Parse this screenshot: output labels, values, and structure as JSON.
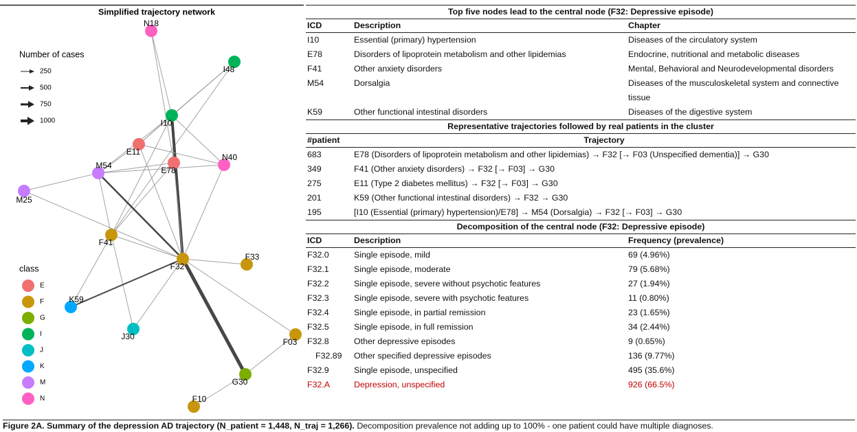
{
  "network": {
    "title": "Simplified trajectory network",
    "legend_title": "Number of cases",
    "widths": [
      250,
      500,
      750,
      1000
    ],
    "class_title": "class",
    "classes": [
      {
        "label": "E",
        "color": "#f07070"
      },
      {
        "label": "F",
        "color": "#c8960c"
      },
      {
        "label": "G",
        "color": "#7cae00"
      },
      {
        "label": "I",
        "color": "#00b35a"
      },
      {
        "label": "J",
        "color": "#00bfc4"
      },
      {
        "label": "K",
        "color": "#00a9ff"
      },
      {
        "label": "M",
        "color": "#c77cff"
      },
      {
        "label": "N",
        "color": "#ff61c3"
      }
    ],
    "nodes": [
      {
        "label": "N18",
        "color": "#ff61c3"
      },
      {
        "label": "I48",
        "color": "#00b35a"
      },
      {
        "label": "I10",
        "color": "#00b35a"
      },
      {
        "label": "E11",
        "color": "#f07070"
      },
      {
        "label": "E78",
        "color": "#f07070"
      },
      {
        "label": "N40",
        "color": "#ff61c3"
      },
      {
        "label": "M54",
        "color": "#c77cff"
      },
      {
        "label": "M25",
        "color": "#c77cff"
      },
      {
        "label": "F41",
        "color": "#c8960c"
      },
      {
        "label": "F32",
        "color": "#c8960c"
      },
      {
        "label": "F33",
        "color": "#c8960c"
      },
      {
        "label": "K59",
        "color": "#00a9ff"
      },
      {
        "label": "J30",
        "color": "#00bfc4"
      },
      {
        "label": "F03",
        "color": "#c8960c"
      },
      {
        "label": "G30",
        "color": "#7cae00"
      },
      {
        "label": "F10",
        "color": "#c8960c"
      }
    ]
  },
  "table1": {
    "title": "Top five nodes lead to the central node (F32: Depressive episode)",
    "headers": [
      "ICD",
      "Description",
      "Chapter"
    ],
    "rows": [
      [
        "I10",
        "Essential (primary) hypertension",
        "Diseases of the circulatory system"
      ],
      [
        "E78",
        "Disorders of lipoprotein metabolism and other lipidemias",
        "Endocrine, nutritional and metabolic diseases"
      ],
      [
        "F41",
        "Other anxiety disorders",
        "Mental, Behavioral and Neurodevelopmental disorders"
      ],
      [
        "M54",
        "Dorsalgia",
        "Diseases of the musculoskeletal system and connective tissue"
      ],
      [
        "K59",
        "Other functional intestinal disorders",
        "Diseases of the digestive system"
      ]
    ]
  },
  "table2": {
    "title": "Representative trajectories followed by real patients in the cluster",
    "headers": [
      "#patient",
      "Trajectory"
    ],
    "rows": [
      [
        683,
        "E78 (Disorders of lipoprotein metabolism and other lipidemias) → F32 [→ F03 (Unspecified dementia)] → G30"
      ],
      [
        349,
        "F41 (Other anxiety disorders) → F32 [→ F03] → G30"
      ],
      [
        275,
        "E11 (Type 2 diabetes mellitus) → F32 [→ F03] → G30"
      ],
      [
        201,
        "K59 (Other functional intestinal disorders) → F32 → G30"
      ],
      [
        195,
        "[I10 (Essential (primary) hypertension)/E78] → M54 (Dorsalgia) → F32 [→ F03] → G30"
      ]
    ]
  },
  "table3": {
    "title": "Decomposition of the central node (F32: Depressive episode)",
    "headers": [
      "ICD",
      "Description",
      "Frequency (prevalence)"
    ],
    "rows": [
      [
        "F32.0",
        "Single episode, mild",
        "69 (4.96%)"
      ],
      [
        "F32.1",
        "Single episode, moderate",
        "79 (5.68%)"
      ],
      [
        "F32.2",
        "Single episode, severe without psychotic features",
        "27 (1.94%)"
      ],
      [
        "F32.3",
        "Single episode, severe with psychotic features",
        "11 (0.80%)"
      ],
      [
        "F32.4",
        "Single episode, in partial remission",
        "23 (1.65%)"
      ],
      [
        "F32.5",
        "Single episode, in full remission",
        "34 (2.44%)"
      ],
      [
        "F32.8",
        "Other depressive episodes",
        "9 (0.65%)"
      ],
      [
        "F32.89",
        "Other specified depressive episodes",
        "136 (9.77%)"
      ],
      [
        "F32.9",
        "Single episode, unspecified",
        "495 (35.6%)"
      ],
      [
        "F32.A",
        "Depression, unspecified",
        "926 (66.5%)"
      ]
    ]
  },
  "caption": {
    "bold": "Figure 2A. Summary of the depression AD trajectory (N_patient = 1,448, N_traj = 1,266).",
    "text": "Decomposition prevalence not adding up to 100% - one patient could have multiple diagnoses."
  }
}
